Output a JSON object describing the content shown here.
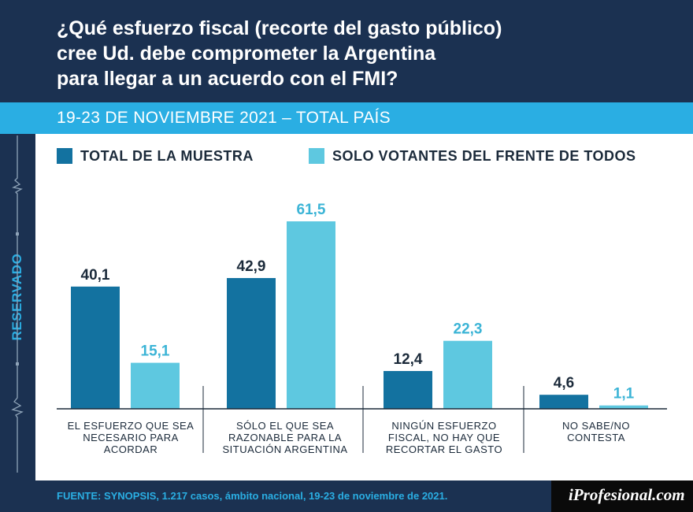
{
  "title_lines": [
    "¿Qué esfuerzo fiscal (recorte del gasto público)",
    "cree Ud. debe comprometer la Argentina",
    "para llegar a un acuerdo con el FMI?"
  ],
  "subtitle": "19-23 DE NOVIEMBRE 2021 – TOTAL PAÍS",
  "side_label": "RESERVADO",
  "source": "FUENTE: SYNOPSIS, 1.217 casos, ámbito nacional, 19-23 de noviembre de 2021.",
  "logo": "iProfesional.com",
  "colors": {
    "header_bg": "#1b3151",
    "accent": "#2aaee3",
    "series_total": "#1372a0",
    "series_fdt": "#5ec8e0"
  },
  "chart_data": {
    "type": "bar",
    "categories": [
      [
        "EL ESFUERZO QUE SEA",
        "NECESARIO PARA",
        "ACORDAR"
      ],
      [
        "SÓLO EL QUE SEA",
        "RAZONABLE PARA LA",
        "SITUACIÓN ARGENTINA"
      ],
      [
        "NINGÚN ESFUERZO",
        "FISCAL, NO HAY QUE",
        "RECORTAR EL GASTO"
      ],
      [
        "NO SABE/NO",
        "CONTESTA"
      ]
    ],
    "series": [
      {
        "name": "TOTAL DE LA MUESTRA",
        "color": "#1372a0",
        "values": [
          40.1,
          42.9,
          12.4,
          4.6
        ],
        "labels": [
          "40,1",
          "42,9",
          "12,4",
          "4,6"
        ]
      },
      {
        "name": "SOLO VOTANTES DEL FRENTE DE TODOS",
        "color": "#5ec8e0",
        "values": [
          15.1,
          61.5,
          22.3,
          1.1
        ],
        "labels": [
          "15,1",
          "61,5",
          "22,3",
          "1,1"
        ]
      }
    ],
    "ylim": [
      0,
      70
    ],
    "grid": false,
    "legend": "top-left"
  }
}
